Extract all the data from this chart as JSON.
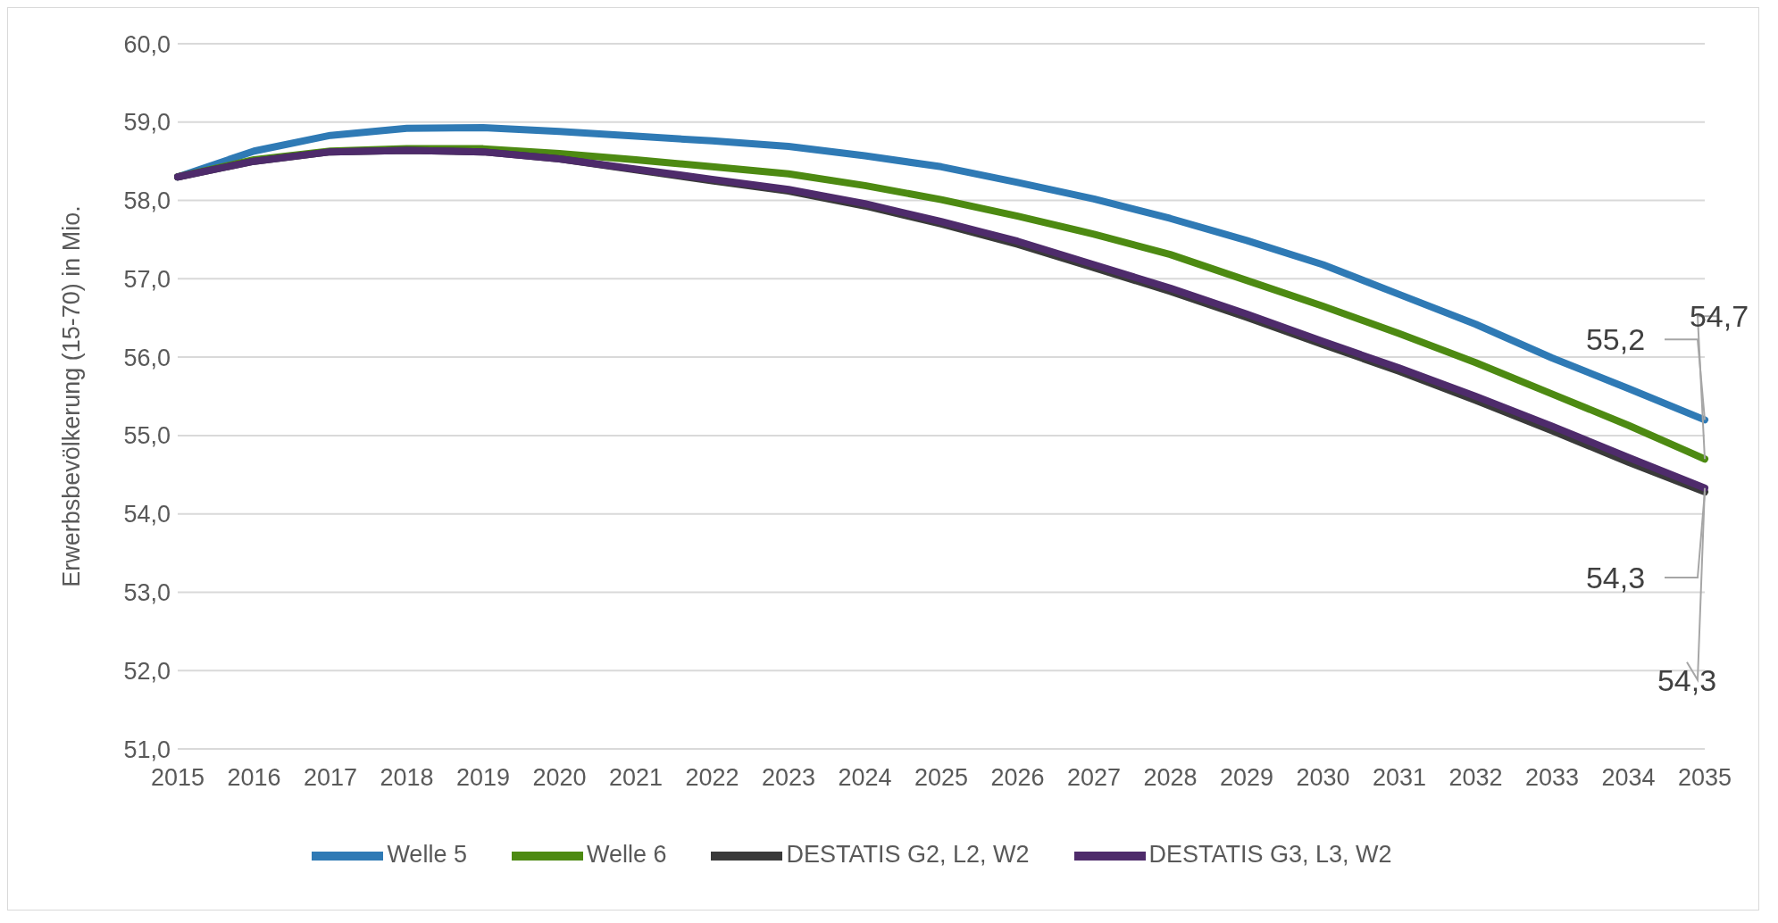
{
  "chart_data": {
    "type": "line",
    "ylabel": "Erwerbsbevölkerung (15-70) in Mio.",
    "categories": [
      "2015",
      "2016",
      "2017",
      "2018",
      "2019",
      "2020",
      "2021",
      "2022",
      "2023",
      "2024",
      "2025",
      "2026",
      "2027",
      "2028",
      "2029",
      "2030",
      "2031",
      "2032",
      "2033",
      "2034",
      "2035"
    ],
    "series": [
      {
        "name": "Welle 5",
        "color": "#2f7ab5",
        "values": [
          58.3,
          58.63,
          58.83,
          58.92,
          58.93,
          58.88,
          58.82,
          58.76,
          58.69,
          58.57,
          58.43,
          58.23,
          58.02,
          57.77,
          57.49,
          57.18,
          56.8,
          56.42,
          55.99,
          55.6,
          55.2
        ],
        "value_labels": [
          null,
          null,
          null,
          null,
          null,
          null,
          null,
          null,
          null,
          null,
          null,
          null,
          null,
          null,
          null,
          null,
          null,
          null,
          null,
          null,
          "55,2"
        ]
      },
      {
        "name": "Welle 6",
        "color": "#4d8a12",
        "values": [
          58.3,
          58.52,
          58.63,
          58.66,
          58.66,
          58.6,
          58.52,
          58.43,
          58.34,
          58.19,
          58.01,
          57.8,
          57.57,
          57.31,
          56.98,
          56.65,
          56.3,
          55.93,
          55.53,
          55.13,
          54.7
        ],
        "value_labels": [
          null,
          null,
          null,
          null,
          null,
          null,
          null,
          null,
          null,
          null,
          null,
          null,
          null,
          null,
          null,
          null,
          null,
          null,
          null,
          null,
          "54,7"
        ]
      },
      {
        "name": "DESTATIS G2, L2, W2",
        "color": "#3a3a3a",
        "values": [
          58.3,
          58.5,
          58.62,
          58.64,
          58.62,
          58.53,
          58.39,
          58.25,
          58.12,
          57.93,
          57.7,
          57.44,
          57.14,
          56.84,
          56.51,
          56.16,
          55.82,
          55.45,
          55.06,
          54.66,
          54.28
        ],
        "value_labels": [
          null,
          null,
          null,
          null,
          null,
          null,
          null,
          null,
          null,
          null,
          null,
          null,
          null,
          null,
          null,
          null,
          null,
          null,
          null,
          null,
          "54,3"
        ]
      },
      {
        "name": "DESTATIS G3, L3, W2",
        "color": "#4e2b6b",
        "values": [
          58.3,
          58.5,
          58.62,
          58.64,
          58.62,
          58.53,
          58.4,
          58.27,
          58.14,
          57.96,
          57.73,
          57.48,
          57.18,
          56.88,
          56.55,
          56.2,
          55.86,
          55.5,
          55.12,
          54.72,
          54.33
        ],
        "value_labels": [
          null,
          null,
          null,
          null,
          null,
          null,
          null,
          null,
          null,
          null,
          null,
          null,
          null,
          null,
          null,
          null,
          null,
          null,
          null,
          null,
          "54,3"
        ]
      }
    ],
    "ylim": [
      51,
      60
    ],
    "yticks": [
      {
        "value": 51,
        "label": "51,0"
      },
      {
        "value": 52,
        "label": "52,0"
      },
      {
        "value": 53,
        "label": "53,0"
      },
      {
        "value": 54,
        "label": "54,0"
      },
      {
        "value": 55,
        "label": "55,0"
      },
      {
        "value": 56,
        "label": "56,0"
      },
      {
        "value": 57,
        "label": "57,0"
      },
      {
        "value": 58,
        "label": "58,0"
      },
      {
        "value": 59,
        "label": "59,0"
      },
      {
        "value": 60,
        "label": "60,0"
      }
    ],
    "grid": "y",
    "legend": "bottom",
    "marker": "none",
    "line_style": "solid"
  }
}
